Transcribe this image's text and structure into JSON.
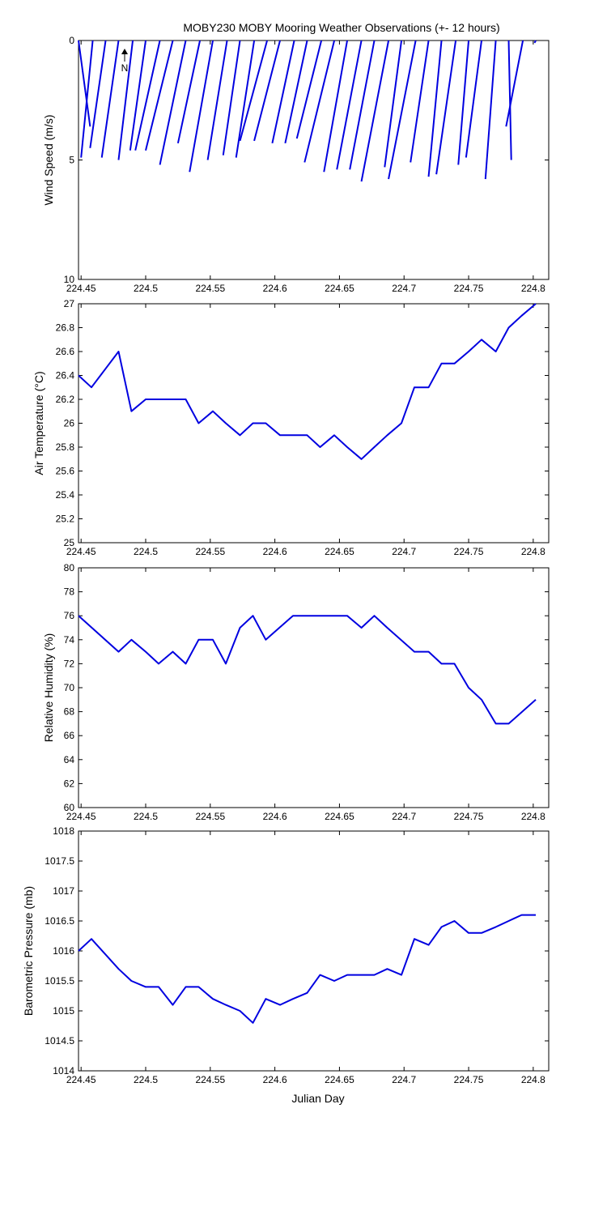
{
  "figure": {
    "title": "MOBY230 MOBY Mooring Weather Observations (+- 12 hours)",
    "x_label": "Julian Day",
    "north_marker": "N",
    "line_color": "#0000e0"
  },
  "chart_data": [
    {
      "type": "line",
      "subtype": "wind-vector-stick",
      "ylabel": "Wind Speed (m/s)",
      "xlim": [
        224.448,
        224.812
      ],
      "ylim": [
        0,
        10
      ],
      "y_reversed": true,
      "xticks": [
        224.45,
        224.5,
        224.55,
        224.6,
        224.65,
        224.7,
        224.75,
        224.8
      ],
      "xtick_labels": [
        "224.45",
        "224.5",
        "224.55",
        "224.6",
        "224.65",
        "224.7",
        "224.75",
        "224.8"
      ],
      "yticks": [
        0,
        5,
        10
      ],
      "ytick_labels": [
        "0",
        "5",
        "10"
      ],
      "series": [
        {
          "x": [
            224.448,
            224.459,
            224.469,
            224.479,
            224.49,
            224.5,
            224.511,
            224.521,
            224.531,
            224.542,
            224.552,
            224.563,
            224.573,
            224.584,
            224.594,
            224.604,
            224.615,
            224.625,
            224.636,
            224.646,
            224.656,
            224.667,
            224.677,
            224.688,
            224.698,
            224.709,
            224.719,
            224.729,
            224.74,
            224.75,
            224.76,
            224.771,
            224.781,
            224.792,
            224.802
          ],
          "end_x": [
            224.457,
            224.45,
            224.457,
            224.466,
            224.479,
            224.488,
            224.492,
            224.5,
            224.511,
            224.525,
            224.534,
            224.548,
            224.56,
            224.57,
            224.573,
            224.584,
            224.598,
            224.608,
            224.617,
            224.623,
            224.638,
            224.648,
            224.658,
            224.667,
            224.685,
            224.688,
            224.705,
            224.719,
            224.725,
            224.742,
            224.748,
            224.763,
            224.783,
            224.779,
            224.801
          ],
          "end_y": [
            3.6,
            4.9,
            4.5,
            4.9,
            5.0,
            4.6,
            4.6,
            4.6,
            5.2,
            4.3,
            5.5,
            5.0,
            4.8,
            4.9,
            4.2,
            4.2,
            4.3,
            4.3,
            4.1,
            5.1,
            5.5,
            5.4,
            5.4,
            5.9,
            5.3,
            5.8,
            5.1,
            5.7,
            5.6,
            5.2,
            4.9,
            5.8,
            5.0,
            3.6,
            0.1
          ]
        }
      ]
    },
    {
      "type": "line",
      "ylabel": "Air Temperature (°C)",
      "xlim": [
        224.448,
        224.812
      ],
      "ylim": [
        25,
        27
      ],
      "xticks": [
        224.45,
        224.5,
        224.55,
        224.6,
        224.65,
        224.7,
        224.75,
        224.8
      ],
      "xtick_labels": [
        "224.45",
        "224.5",
        "224.55",
        "224.6",
        "224.65",
        "224.7",
        "224.75",
        "224.8"
      ],
      "yticks": [
        25,
        25.2,
        25.4,
        25.6,
        25.8,
        26,
        26.2,
        26.4,
        26.6,
        26.8,
        27
      ],
      "ytick_labels": [
        "25",
        "25.2",
        "25.4",
        "25.6",
        "25.8",
        "26",
        "26.2",
        "26.4",
        "26.6",
        "26.8",
        "27"
      ],
      "series": [
        {
          "x": [
            224.448,
            224.458,
            224.479,
            224.489,
            224.5,
            224.51,
            224.521,
            224.531,
            224.541,
            224.552,
            224.562,
            224.573,
            224.583,
            224.593,
            224.604,
            224.614,
            224.625,
            224.635,
            224.646,
            224.656,
            224.667,
            224.677,
            224.687,
            224.698,
            224.708,
            224.719,
            224.729,
            224.739,
            224.75,
            224.76,
            224.771,
            224.781,
            224.791,
            224.802
          ],
          "y": [
            26.4,
            26.3,
            26.6,
            26.1,
            26.2,
            26.2,
            26.2,
            26.2,
            26.0,
            26.1,
            26.0,
            25.9,
            26.0,
            26.0,
            25.9,
            25.9,
            25.9,
            25.8,
            25.9,
            25.8,
            25.7,
            25.8,
            25.9,
            26.0,
            26.3,
            26.3,
            26.5,
            26.5,
            26.6,
            26.7,
            26.6,
            26.8,
            26.9,
            27.0
          ]
        }
      ]
    },
    {
      "type": "line",
      "ylabel": "Relative Humidity (%)",
      "xlim": [
        224.448,
        224.812
      ],
      "ylim": [
        60,
        80
      ],
      "xticks": [
        224.45,
        224.5,
        224.55,
        224.6,
        224.65,
        224.7,
        224.75,
        224.8
      ],
      "xtick_labels": [
        "224.45",
        "224.5",
        "224.55",
        "224.6",
        "224.65",
        "224.7",
        "224.75",
        "224.8"
      ],
      "yticks": [
        60,
        62,
        64,
        66,
        68,
        70,
        72,
        74,
        76,
        78,
        80
      ],
      "ytick_labels": [
        "60",
        "62",
        "64",
        "66",
        "68",
        "70",
        "72",
        "74",
        "76",
        "78",
        "80"
      ],
      "series": [
        {
          "x": [
            224.448,
            224.479,
            224.489,
            224.5,
            224.51,
            224.521,
            224.531,
            224.541,
            224.552,
            224.562,
            224.573,
            224.583,
            224.593,
            224.614,
            224.625,
            224.635,
            224.656,
            224.667,
            224.677,
            224.687,
            224.708,
            224.719,
            224.729,
            224.739,
            224.75,
            224.76,
            224.771,
            224.781,
            224.802
          ],
          "y": [
            76,
            73,
            74,
            73,
            72,
            73,
            72,
            74,
            74,
            72,
            75,
            76,
            74,
            76,
            76,
            76,
            76,
            75,
            76,
            75,
            73,
            73,
            72,
            72,
            70,
            69,
            67,
            67,
            69
          ]
        }
      ]
    },
    {
      "type": "line",
      "ylabel": "Barometric Pressure (mb)",
      "xlim": [
        224.448,
        224.812
      ],
      "ylim": [
        1014,
        1018
      ],
      "xticks": [
        224.45,
        224.5,
        224.55,
        224.6,
        224.65,
        224.7,
        224.75,
        224.8
      ],
      "xtick_labels": [
        "224.45",
        "224.5",
        "224.55",
        "224.6",
        "224.65",
        "224.7",
        "224.75",
        "224.8"
      ],
      "yticks": [
        1014,
        1014.5,
        1015,
        1015.5,
        1016,
        1016.5,
        1017,
        1017.5,
        1018
      ],
      "ytick_labels": [
        "1014",
        "1014.5",
        "1015",
        "1015.5",
        "1016",
        "1016.5",
        "1017",
        "1017.5",
        "1018"
      ],
      "series": [
        {
          "x": [
            224.448,
            224.458,
            224.479,
            224.489,
            224.5,
            224.51,
            224.521,
            224.531,
            224.541,
            224.552,
            224.562,
            224.573,
            224.583,
            224.593,
            224.604,
            224.614,
            224.625,
            224.635,
            224.646,
            224.656,
            224.667,
            224.677,
            224.687,
            224.698,
            224.708,
            224.719,
            224.729,
            224.739,
            224.75,
            224.76,
            224.771,
            224.781,
            224.791,
            224.802
          ],
          "y": [
            1016.0,
            1016.2,
            1015.7,
            1015.5,
            1015.4,
            1015.4,
            1015.1,
            1015.4,
            1015.4,
            1015.2,
            1015.1,
            1015.0,
            1014.8,
            1015.2,
            1015.1,
            1015.2,
            1015.3,
            1015.6,
            1015.5,
            1015.6,
            1015.6,
            1015.6,
            1015.7,
            1015.6,
            1016.2,
            1016.1,
            1016.4,
            1016.5,
            1016.3,
            1016.3,
            1016.4,
            1016.5,
            1016.6,
            1016.6
          ]
        }
      ]
    }
  ]
}
